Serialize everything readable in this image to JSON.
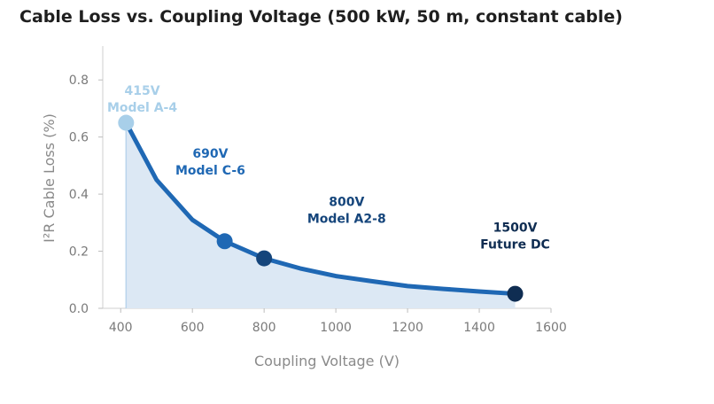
{
  "chart_data": {
    "type": "area",
    "title": "Cable Loss vs. Coupling Voltage (500 kW, 50 m, constant cable)",
    "xlabel": "Coupling Voltage (V)",
    "ylabel": "I²R Cable Loss (%)",
    "xlim": [
      350,
      1600
    ],
    "ylim": [
      0,
      0.9
    ],
    "xticks": [
      400,
      600,
      800,
      1000,
      1200,
      1400,
      1600
    ],
    "yticks": [
      0.0,
      0.2,
      0.4,
      0.6,
      0.8
    ],
    "ytick_labels": [
      "0.0",
      "0.2",
      "0.4",
      "0.6",
      "0.8"
    ],
    "grid": false,
    "series": [
      {
        "name": "Cable loss",
        "color": "#1f68b4",
        "fill_color": "#dce8f4",
        "x": [
          415,
          500,
          600,
          690,
          800,
          900,
          1000,
          1100,
          1200,
          1300,
          1400,
          1500
        ],
        "y": [
          0.65,
          0.45,
          0.31,
          0.235,
          0.175,
          0.14,
          0.113,
          0.095,
          0.078,
          0.068,
          0.059,
          0.051
        ]
      }
    ],
    "highlights": [
      {
        "voltage": "415V",
        "model": "Model A-4",
        "x": 415,
        "y": 0.65,
        "color": "#a8cfe9",
        "label_x": 460,
        "label_y": 0.72
      },
      {
        "voltage": "690V",
        "model": "Model C-6",
        "x": 690,
        "y": 0.235,
        "color": "#1f68b4",
        "label_x": 650,
        "label_y": 0.5
      },
      {
        "voltage": "800V",
        "model": "Model A2-8",
        "x": 800,
        "y": 0.175,
        "color": "#15457b",
        "label_x": 1030,
        "label_y": 0.33
      },
      {
        "voltage": "1500V",
        "model": "Future DC",
        "x": 1500,
        "y": 0.051,
        "color": "#0f2d52",
        "label_x": 1500,
        "label_y": 0.24
      }
    ]
  }
}
